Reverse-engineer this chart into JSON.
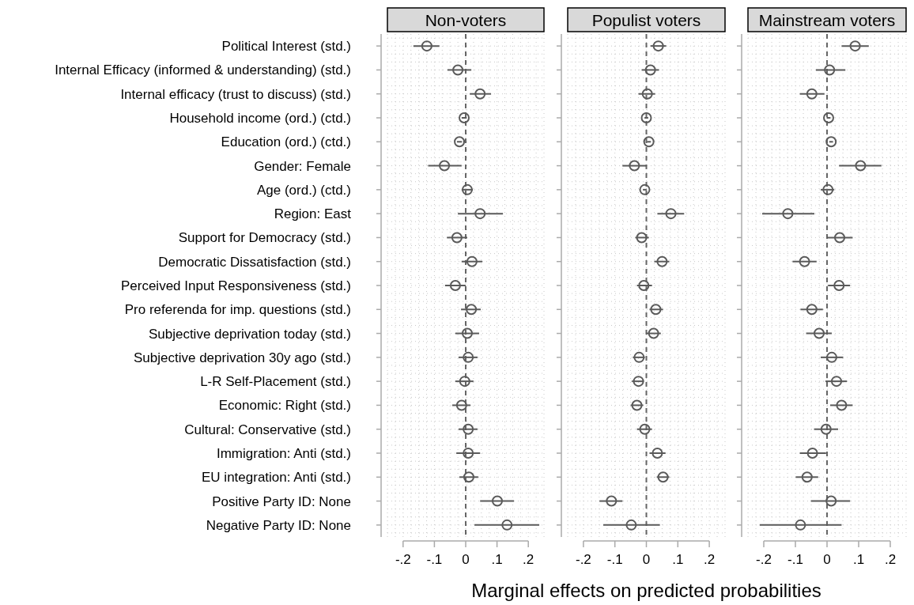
{
  "chart_data": [
    {
      "type": "scatter",
      "orientation": "horizontal",
      "title": "Non-voters",
      "color": "#5a5a5a",
      "marker": "circle",
      "grid": true,
      "categories": [
        "Political Interest (std.)",
        "Internal Efficacy (informed & understanding) (std.)",
        "Internal efficacy (trust to discuss) (std.)",
        "Household income (ord.) (ctd.)",
        "Education (ord.) (ctd.)",
        "Gender: Female",
        "Age (ord.) (ctd.)",
        "Region: East",
        "Support for Democracy (std.)",
        "Democratic Dissatisfaction (std.)",
        "Perceived Input Responsiveness (std.)",
        "Pro referenda for imp. questions (std.)",
        "Subjective deprivation today (std.)",
        "Subjective deprivation 30y ago (std.)",
        "L-R Self-Placement (std.)",
        "Economic: Right (std.)",
        "Cultural: Conservative (std.)",
        "Immigration: Anti (std.)",
        "EU integration: Anti (std.)",
        "Positive Party ID: None",
        "Negative Party ID: None"
      ],
      "values": [
        -0.124,
        -0.025,
        0.046,
        -0.005,
        -0.02,
        -0.068,
        0.005,
        0.046,
        -0.028,
        0.02,
        -0.033,
        0.018,
        0.005,
        0.008,
        -0.003,
        -0.013,
        0.008,
        0.008,
        0.01,
        0.101,
        0.132
      ],
      "errors": [
        [
          -0.167,
          -0.084
        ],
        [
          -0.058,
          0.018
        ],
        [
          0.013,
          0.081
        ],
        [
          -0.013,
          0.003
        ],
        [
          -0.028,
          -0.012
        ],
        [
          -0.12,
          -0.013
        ],
        [
          -0.013,
          0.023
        ],
        [
          -0.025,
          0.119
        ],
        [
          -0.06,
          0.005
        ],
        [
          -0.013,
          0.053
        ],
        [
          -0.066,
          0
        ],
        [
          -0.015,
          0.048
        ],
        [
          -0.033,
          0.043
        ],
        [
          -0.023,
          0.038
        ],
        [
          -0.033,
          0.025
        ],
        [
          -0.043,
          0.015
        ],
        [
          -0.023,
          0.038
        ],
        [
          -0.03,
          0.046
        ],
        [
          -0.02,
          0.04
        ],
        [
          0.046,
          0.154
        ],
        [
          0.028,
          0.235
        ]
      ],
      "xlim": [
        -0.25,
        0.25
      ],
      "xticks": [
        {
          "value": -0.2,
          "label": "-.2"
        },
        {
          "value": -0.1,
          "label": "-.1"
        },
        {
          "value": 0,
          "label": "0"
        },
        {
          "value": 0.1,
          "label": ".1"
        },
        {
          "value": 0.2,
          "label": ".2"
        }
      ],
      "ref_lines": [
        {
          "axis": "x",
          "value": 0,
          "line_style": "dashed"
        }
      ]
    },
    {
      "type": "scatter",
      "orientation": "horizontal",
      "title": "Populist voters",
      "xlabel": "Marginal effects on predicted probabilities",
      "color": "#5a5a5a",
      "marker": "circle",
      "grid": true,
      "categories": [
        null,
        null,
        null,
        null,
        null,
        null,
        null,
        null,
        null,
        null,
        null,
        null,
        null,
        null,
        null,
        null,
        null,
        null,
        null,
        null,
        null
      ],
      "values": [
        0.038,
        0.013,
        0.003,
        0,
        0.008,
        -0.038,
        -0.005,
        0.078,
        -0.015,
        0.05,
        -0.008,
        0.03,
        0.023,
        -0.023,
        -0.025,
        -0.03,
        -0.005,
        0.035,
        0.053,
        -0.111,
        -0.048
      ],
      "errors": [
        [
          0.013,
          0.063
        ],
        [
          -0.015,
          0.04
        ],
        [
          -0.025,
          0.028
        ],
        [
          -0.006,
          0.006
        ],
        [
          0.002,
          0.014
        ],
        [
          -0.076,
          0
        ],
        [
          -0.011,
          0.001
        ],
        [
          0.035,
          0.12
        ],
        [
          -0.035,
          0.008
        ],
        [
          0.025,
          0.073
        ],
        [
          -0.03,
          0.018
        ],
        [
          0.01,
          0.053
        ],
        [
          0,
          0.046
        ],
        [
          -0.043,
          -0.005
        ],
        [
          -0.046,
          -0.008
        ],
        [
          -0.05,
          -0.01
        ],
        [
          -0.03,
          0.018
        ],
        [
          0.01,
          0.061
        ],
        [
          0.033,
          0.073
        ],
        [
          -0.149,
          -0.076
        ],
        [
          -0.137,
          0.043
        ]
      ],
      "xlim": [
        -0.25,
        0.25
      ],
      "xticks": [
        {
          "value": -0.2,
          "label": "-.2"
        },
        {
          "value": -0.1,
          "label": "-.1"
        },
        {
          "value": 0,
          "label": "0"
        },
        {
          "value": 0.1,
          "label": ".1"
        },
        {
          "value": 0.2,
          "label": ".2"
        }
      ],
      "ref_lines": [
        {
          "axis": "x",
          "value": 0,
          "line_style": "dashed"
        }
      ]
    },
    {
      "type": "scatter",
      "orientation": "horizontal",
      "title": "Mainstream voters",
      "color": "#5a5a5a",
      "marker": "circle",
      "grid": true,
      "categories": [
        null,
        null,
        null,
        null,
        null,
        null,
        null,
        null,
        null,
        null,
        null,
        null,
        null,
        null,
        null,
        null,
        null,
        null,
        null,
        null,
        null
      ],
      "values": [
        0.089,
        0.008,
        -0.048,
        0.005,
        0.013,
        0.106,
        0.003,
        -0.124,
        0.04,
        -0.071,
        0.038,
        -0.048,
        -0.025,
        0.015,
        0.03,
        0.046,
        -0.003,
        -0.046,
        -0.063,
        0.013,
        -0.084
      ],
      "errors": [
        [
          0.046,
          0.132
        ],
        [
          -0.035,
          0.058
        ],
        [
          -0.086,
          -0.008
        ],
        [
          -0.001,
          0.011
        ],
        [
          0.007,
          0.019
        ],
        [
          0.038,
          0.172
        ],
        [
          -0.02,
          0.023
        ],
        [
          -0.205,
          -0.04
        ],
        [
          0,
          0.081
        ],
        [
          -0.109,
          -0.033
        ],
        [
          0.003,
          0.073
        ],
        [
          -0.084,
          -0.013
        ],
        [
          -0.066,
          0.015
        ],
        [
          -0.02,
          0.051
        ],
        [
          -0.005,
          0.063
        ],
        [
          0.01,
          0.081
        ],
        [
          -0.041,
          0.035
        ],
        [
          -0.086,
          -0.003
        ],
        [
          -0.099,
          -0.028
        ],
        [
          -0.051,
          0.073
        ],
        [
          -0.213,
          0.046
        ]
      ],
      "xlim": [
        -0.25,
        0.25
      ],
      "xticks": [
        {
          "value": -0.2,
          "label": "-.2"
        },
        {
          "value": -0.1,
          "label": "-.1"
        },
        {
          "value": 0,
          "label": "0"
        },
        {
          "value": 0.1,
          "label": ".1"
        },
        {
          "value": 0.2,
          "label": ".2"
        }
      ],
      "ref_lines": [
        {
          "axis": "x",
          "value": 0,
          "line_style": "dashed"
        }
      ]
    }
  ]
}
